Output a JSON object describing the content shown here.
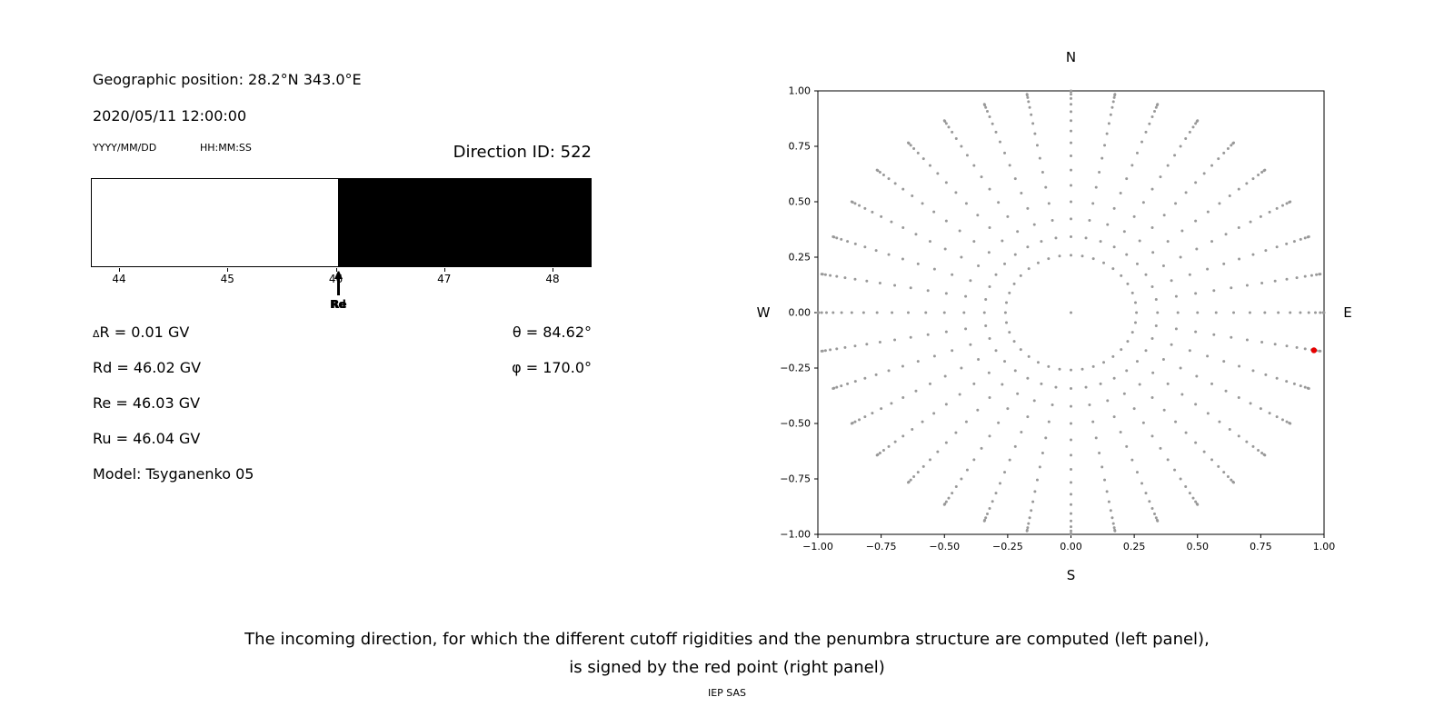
{
  "header": {
    "geo_position": "Geographic position: 28.2°N 343.0°E",
    "datetime": "2020/05/11 12:00:00",
    "date_format_label": "YYYY/MM/DD",
    "time_format_label": "HH:MM:SS",
    "direction_id": "Direction ID: 522"
  },
  "info": {
    "delta_symbol": "Δ",
    "delta_rest": "R = 0.01 GV",
    "rd": "Rd = 46.02 GV",
    "re": "Re = 46.03 GV",
    "ru": "Ru = 46.04 GV",
    "model": "Model: Tsyganenko 05",
    "theta": "θ = 84.62°",
    "phi": "φ = 170.0°"
  },
  "caption": {
    "line1": "The incoming direction, for which the different cutoff rigidities and the penumbra structure are computed (left panel),",
    "line2": "is signed by the red point (right panel)",
    "credit": "IEP SAS"
  },
  "chart_data": [
    {
      "id": "penumbra-structure",
      "type": "bar",
      "xlim": [
        43.74,
        48.36
      ],
      "xticks": [
        {
          "value": 44,
          "label": "44"
        },
        {
          "value": 45,
          "label": "45"
        },
        {
          "value": 46,
          "label": "46"
        },
        {
          "value": 47,
          "label": "47"
        },
        {
          "value": 48,
          "label": "48"
        }
      ],
      "segments": [
        {
          "from": 43.74,
          "to": 46.02,
          "color": "#ffffff"
        },
        {
          "from": 46.02,
          "to": 48.36,
          "color": "#000000"
        }
      ],
      "markers": [
        {
          "label": "Rd",
          "x": 46.02
        },
        {
          "label": "Re",
          "x": 46.03
        }
      ]
    },
    {
      "id": "incoming-direction-map",
      "type": "scatter",
      "xlim": [
        -1,
        1
      ],
      "ylim": [
        -1,
        1
      ],
      "xticks": [
        {
          "value": -1,
          "label": "−1.00"
        },
        {
          "value": -0.75,
          "label": "−0.75"
        },
        {
          "value": -0.5,
          "label": "−0.50"
        },
        {
          "value": -0.25,
          "label": "−0.25"
        },
        {
          "value": 0,
          "label": "0.00"
        },
        {
          "value": 0.25,
          "label": "0.25"
        },
        {
          "value": 0.5,
          "label": "0.50"
        },
        {
          "value": 0.75,
          "label": "0.75"
        },
        {
          "value": 1,
          "label": "1.00"
        }
      ],
      "yticks": [
        {
          "value": 1,
          "label": "1.00"
        },
        {
          "value": 0.75,
          "label": "0.75"
        },
        {
          "value": 0.5,
          "label": "0.50"
        },
        {
          "value": 0.25,
          "label": "0.25"
        },
        {
          "value": 0,
          "label": "0.00"
        },
        {
          "value": -0.25,
          "label": "−0.25"
        },
        {
          "value": -0.5,
          "label": "−0.50"
        },
        {
          "value": -0.75,
          "label": "−0.75"
        },
        {
          "value": -1,
          "label": "−1.00"
        }
      ],
      "compass": {
        "top": "N",
        "bottom": "S",
        "left": "W",
        "right": "E"
      },
      "grid_points": {
        "azimuth_count": 36,
        "zenith_deg_start": 15,
        "zenith_deg_end": 90,
        "zenith_deg_step": 5,
        "radius_mapping": "sin(zenith)",
        "include_center_point": true,
        "color": "#999999",
        "marker_radius_px": 1.5
      },
      "red_point": {
        "x": 0.96,
        "y": -0.17,
        "color": "#e60000"
      }
    }
  ]
}
